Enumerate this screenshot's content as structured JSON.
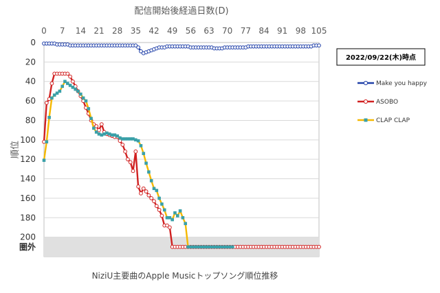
{
  "chart_data": {
    "type": "line",
    "title": "",
    "caption": "NiziU主要曲のApple Musicトップソング順位推移",
    "date_label": "2022/09/22(木)時点",
    "xlabel": "配信開始後経過日数(D)",
    "ylabel": "順位",
    "x_ticks": [
      0,
      7,
      14,
      21,
      28,
      35,
      42,
      49,
      56,
      63,
      70,
      77,
      84,
      91,
      98,
      105
    ],
    "y_ticks": [
      "0",
      "20",
      "40",
      "60",
      "80",
      "100",
      "120",
      "140",
      "160",
      "180",
      "200"
    ],
    "y_out_label": "圏外",
    "xlim": [
      0,
      105
    ],
    "ylim": [
      0,
      220
    ],
    "y_inverted": true,
    "out_of_rank_value": 210,
    "grid": true,
    "legend_position": "right",
    "series": [
      {
        "name": "Make you happy",
        "color": "#1f3fa8",
        "marker_fill": "#ffffff",
        "marker": "circle",
        "x": [
          0,
          1,
          2,
          3,
          4,
          5,
          6,
          7,
          8,
          9,
          10,
          11,
          12,
          13,
          14,
          15,
          16,
          17,
          18,
          19,
          20,
          21,
          22,
          23,
          24,
          25,
          26,
          27,
          28,
          29,
          30,
          31,
          32,
          33,
          34,
          35,
          36,
          37,
          38,
          39,
          40,
          41,
          42,
          43,
          44,
          45,
          46,
          47,
          48,
          49,
          50,
          51,
          52,
          53,
          54,
          55,
          56,
          57,
          58,
          59,
          60,
          61,
          62,
          63,
          64,
          65,
          66,
          67,
          68,
          69,
          70,
          71,
          72,
          73,
          74,
          75,
          76,
          77,
          78,
          79,
          80,
          81,
          82,
          83,
          84,
          85,
          86,
          87,
          88,
          89,
          90,
          91,
          92,
          93,
          94,
          95,
          96,
          97,
          98,
          99,
          100,
          101,
          102,
          103,
          104,
          105
        ],
        "values": [
          1,
          1,
          1,
          1,
          1,
          2,
          2,
          2,
          2,
          2,
          3,
          3,
          3,
          3,
          3,
          3,
          3,
          3,
          3,
          3,
          3,
          3,
          3,
          3,
          3,
          3,
          3,
          3,
          3,
          3,
          3,
          3,
          3,
          3,
          3,
          3,
          5,
          9,
          11,
          10,
          9,
          8,
          7,
          6,
          5,
          5,
          5,
          4,
          4,
          4,
          4,
          4,
          4,
          4,
          4,
          4,
          5,
          5,
          5,
          5,
          5,
          5,
          5,
          5,
          5,
          6,
          6,
          6,
          6,
          5,
          5,
          5,
          5,
          5,
          5,
          5,
          5,
          5,
          4,
          4,
          4,
          4,
          4,
          4,
          4,
          4,
          4,
          4,
          4,
          4,
          4,
          4,
          4,
          4,
          4,
          4,
          4,
          4,
          4,
          4,
          4,
          4,
          4,
          3,
          3,
          3
        ]
      },
      {
        "name": "ASOBO",
        "color": "#d02020",
        "marker_fill": "#ffffff",
        "marker": "circle",
        "x": [
          0,
          1,
          2,
          3,
          4,
          5,
          6,
          7,
          8,
          9,
          10,
          11,
          12,
          13,
          14,
          15,
          16,
          17,
          18,
          19,
          20,
          21,
          22,
          23,
          24,
          25,
          26,
          27,
          28,
          29,
          30,
          31,
          32,
          33,
          34,
          35,
          36,
          37,
          38,
          39,
          40,
          41,
          42,
          43,
          44,
          45,
          46,
          47,
          48,
          49,
          50,
          51,
          52,
          53,
          54,
          55,
          56,
          57,
          58,
          59,
          60,
          61,
          62,
          63,
          64,
          65,
          66,
          67,
          68,
          69,
          70,
          71,
          72,
          73,
          74,
          75,
          76,
          77,
          78,
          79,
          80,
          81,
          82,
          83,
          84,
          85,
          86,
          87,
          88,
          89,
          90,
          91,
          92,
          93,
          94,
          95,
          96,
          97,
          98,
          99,
          100,
          101,
          102,
          103,
          104,
          105
        ],
        "values": [
          102,
          62,
          58,
          42,
          32,
          32,
          32,
          32,
          32,
          32,
          35,
          40,
          45,
          50,
          55,
          60,
          67,
          73,
          80,
          84,
          86,
          90,
          84,
          92,
          94,
          95,
          96,
          97,
          97,
          101,
          105,
          112,
          120,
          123,
          132,
          112,
          148,
          155,
          150,
          153,
          157,
          160,
          163,
          168,
          172,
          178,
          188,
          188,
          190,
          210,
          210,
          210,
          210,
          210,
          210,
          210,
          210,
          210,
          210,
          210,
          210,
          210,
          210,
          210,
          210,
          210,
          210,
          210,
          210,
          210,
          210,
          210,
          210,
          210,
          210,
          210,
          210,
          210,
          210,
          210,
          210,
          210,
          210,
          210,
          210,
          210,
          210,
          210,
          210,
          210,
          210,
          210,
          210,
          210,
          210,
          210,
          210,
          210,
          210,
          210,
          210,
          210,
          210,
          210,
          210,
          210
        ]
      },
      {
        "name": "CLAP CLAP",
        "color": "#f5b800",
        "marker_fill": "#3aa0a8",
        "marker": "square",
        "x": [
          0,
          1,
          2,
          3,
          4,
          5,
          6,
          7,
          8,
          9,
          10,
          11,
          12,
          13,
          14,
          15,
          16,
          17,
          18,
          19,
          20,
          21,
          22,
          23,
          24,
          25,
          26,
          27,
          28,
          29,
          30,
          31,
          32,
          33,
          34,
          35,
          36,
          37,
          38,
          39,
          40,
          41,
          42,
          43,
          44,
          45,
          46,
          47,
          48,
          49,
          50,
          51,
          52,
          53,
          54,
          55,
          56,
          57,
          58,
          59,
          60,
          61,
          62,
          63,
          64,
          65,
          66,
          67,
          68,
          69,
          70,
          71,
          72
        ],
        "values": [
          121,
          102,
          77,
          57,
          54,
          52,
          50,
          45,
          40,
          42,
          44,
          46,
          48,
          50,
          53,
          57,
          60,
          68,
          78,
          88,
          92,
          94,
          95,
          94,
          93,
          94,
          95,
          95,
          96,
          98,
          99,
          99,
          99,
          99,
          99,
          100,
          101,
          106,
          114,
          124,
          133,
          142,
          150,
          152,
          160,
          166,
          172,
          180,
          180,
          182,
          175,
          178,
          173,
          180,
          186,
          210,
          210,
          210,
          210,
          210,
          210,
          210,
          210,
          210,
          210,
          210,
          210,
          210,
          210,
          210,
          210,
          210,
          210
        ]
      }
    ]
  }
}
